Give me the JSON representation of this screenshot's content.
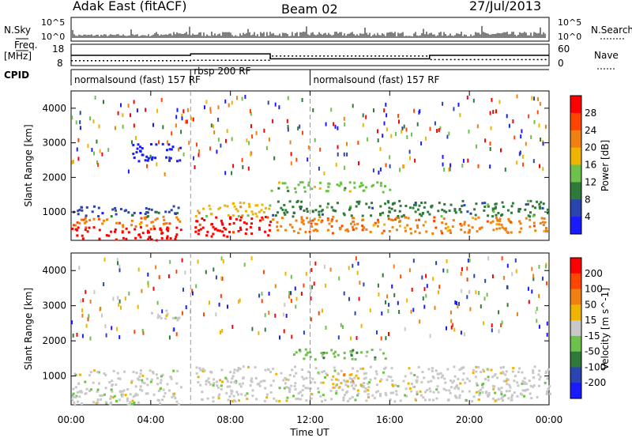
{
  "header": {
    "station": "Adak East (fitACF)",
    "beam": "Beam 02",
    "date": "27/Jul/2013"
  },
  "params": {
    "nsky_label": "N.Sky",
    "nsearch_label": "N.Search",
    "freq_label": "Freq.",
    "freq_unit": "[MHz]",
    "nave_label": "Nave",
    "cpid_label": "CPID",
    "noise_ticks": [
      "10^5",
      "10^0"
    ],
    "freq_ticks": [
      "18",
      "8"
    ],
    "nave_ticks": [
      "60",
      "0"
    ],
    "cpid_segments": [
      {
        "label": "normalsound (fast) 157 RF",
        "start": 0.0,
        "end": 6.0
      },
      {
        "label": "rbsp 200 RF",
        "start": 6.0,
        "end": 12.0
      },
      {
        "label": "normalsound (fast) 157 RF",
        "start": 12.0,
        "end": 24.0
      }
    ],
    "freq_series": {
      "x": [
        0,
        6,
        10,
        18,
        24
      ],
      "y": [
        12.8,
        13.5,
        11.2,
        12.8,
        12.8
      ]
    },
    "nave_series": {
      "x": [
        0,
        6,
        10,
        18,
        24
      ],
      "y": [
        14,
        15,
        27,
        17,
        17
      ]
    }
  },
  "x_axis": {
    "label": "Time UT",
    "ticks": [
      "00:00",
      "04:00",
      "08:00",
      "12:00",
      "16:00",
      "20:00",
      "00:00"
    ]
  },
  "chart_data": [
    {
      "type": "heatmap",
      "ylabel": "Slant Range [km]",
      "yticks": [
        "1000",
        "2000",
        "3000",
        "4000"
      ],
      "ylim": [
        180,
        4500
      ],
      "xlim": [
        0,
        24
      ],
      "colorbar": {
        "title": "Power [dB]",
        "ticks": [
          "4",
          "8",
          "12",
          "16",
          "20",
          "24",
          "28"
        ],
        "colors": [
          "#1a1aff",
          "#2a45b0",
          "#2f7a3a",
          "#6cc24a",
          "#f0b400",
          "#f08010",
          "#ff4500",
          "#ff0000"
        ]
      },
      "regions": [
        {
          "x0": 0.0,
          "x1": 5.5,
          "r0": 200,
          "r1": 600,
          "level": 7
        },
        {
          "x0": 0.0,
          "x1": 5.5,
          "r0": 600,
          "r1": 900,
          "level": 5
        },
        {
          "x0": 0.0,
          "x1": 5.5,
          "r0": 900,
          "r1": 1200,
          "level": 1
        },
        {
          "x0": 6.2,
          "x1": 10.0,
          "r0": 300,
          "r1": 900,
          "level": 7
        },
        {
          "x0": 6.2,
          "x1": 10.0,
          "r0": 900,
          "r1": 1300,
          "level": 4
        },
        {
          "x0": 10.0,
          "x1": 24.0,
          "r0": 400,
          "r1": 900,
          "level": 5
        },
        {
          "x0": 10.0,
          "x1": 24.0,
          "r0": 900,
          "r1": 1350,
          "level": 2
        },
        {
          "x0": 3.0,
          "x1": 5.5,
          "r0": 2500,
          "r1": 3000,
          "level": 0
        },
        {
          "x0": 10.0,
          "x1": 16.0,
          "r0": 1600,
          "r1": 1900,
          "level": 3
        }
      ]
    },
    {
      "type": "heatmap",
      "ylabel": "Slant Range [km]",
      "yticks": [
        "1000",
        "2000",
        "3000",
        "4000"
      ],
      "ylim": [
        180,
        4500
      ],
      "xlim": [
        0,
        24
      ],
      "colorbar": {
        "title": "Velocity [m s^-1]",
        "ticks": [
          "200",
          "100",
          "50",
          "15",
          "-15",
          "-50",
          "-100",
          "-200"
        ],
        "colors": [
          "#1a1aff",
          "#2a45b0",
          "#2f7a3a",
          "#6cc24a",
          "#c8c8c8",
          "#f0b400",
          "#f08010",
          "#ff4500",
          "#ff0000"
        ]
      },
      "regions": [
        {
          "x0": 0.0,
          "x1": 5.5,
          "r0": 200,
          "r1": 1200,
          "level": 4
        },
        {
          "x0": 6.2,
          "x1": 10.0,
          "r0": 300,
          "r1": 1300,
          "level": 4
        },
        {
          "x0": 10.0,
          "x1": 24.0,
          "r0": 300,
          "r1": 1300,
          "level": 4
        },
        {
          "x0": 4.0,
          "x1": 5.5,
          "r0": 2600,
          "r1": 2900,
          "level": 4
        },
        {
          "x0": 11.0,
          "x1": 16.0,
          "r0": 1500,
          "r1": 1800,
          "level": 3
        },
        {
          "x0": 13.0,
          "x1": 14.5,
          "r0": 700,
          "r1": 1100,
          "level": 5
        }
      ]
    }
  ]
}
